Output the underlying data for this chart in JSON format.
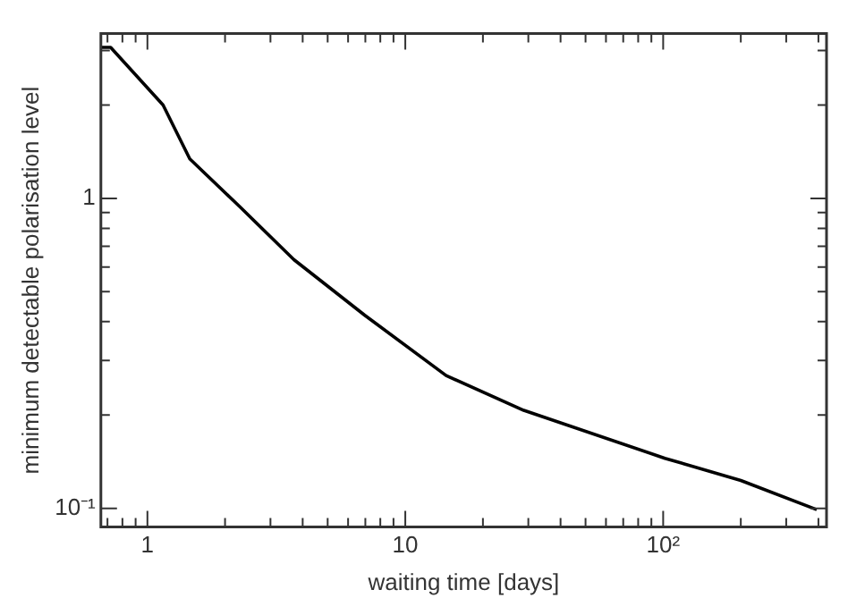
{
  "chart_data": {
    "type": "line",
    "xlabel": "waiting time [days]",
    "ylabel": "minimum detectable polarisation level",
    "log": "xy",
    "grid": false,
    "marker": "none",
    "line_style": "solid",
    "x": [
      0.66,
      0.72,
      1.15,
      1.46,
      2.31,
      3.7,
      6.95,
      14.4,
      28.8,
      101.6,
      200,
      394
    ],
    "series": [
      {
        "color": "#000000",
        "values": [
          3.07,
          3.07,
          2.0,
          1.34,
          0.93,
          0.634,
          0.42,
          0.268,
          0.207,
          0.145,
          0.123,
          0.099
        ]
      }
    ],
    "xlim": [
      0.66,
      430
    ],
    "ylim": [
      0.087,
      3.4
    ],
    "xticks": [
      {
        "value": 0.7,
        "label": null
      },
      {
        "value": 0.8,
        "label": null
      },
      {
        "value": 0.9,
        "label": null
      },
      1,
      {
        "value": 2,
        "label": null
      },
      {
        "value": 3,
        "label": null
      },
      {
        "value": 4,
        "label": null
      },
      {
        "value": 5,
        "label": null
      },
      {
        "value": 6,
        "label": null
      },
      {
        "value": 7,
        "label": null
      },
      {
        "value": 8,
        "label": null
      },
      {
        "value": 9,
        "label": null
      },
      10,
      {
        "value": 20,
        "label": null
      },
      {
        "value": 30,
        "label": null
      },
      {
        "value": 40,
        "label": null
      },
      {
        "value": 50,
        "label": null
      },
      {
        "value": 60,
        "label": null
      },
      {
        "value": 70,
        "label": null
      },
      {
        "value": 80,
        "label": null
      },
      {
        "value": 90,
        "label": null
      },
      {
        "value": 100,
        "label": "10²"
      },
      {
        "value": 200,
        "label": null
      },
      {
        "value": 300,
        "label": null
      },
      {
        "value": 400,
        "label": null
      }
    ],
    "yticks": [
      {
        "value": 0.1,
        "label": "10⁻¹"
      },
      {
        "value": 0.2,
        "label": null
      },
      {
        "value": 0.3,
        "label": null
      },
      {
        "value": 0.4,
        "label": null
      },
      {
        "value": 0.5,
        "label": null
      },
      {
        "value": 0.6,
        "label": null
      },
      {
        "value": 0.7,
        "label": null
      },
      {
        "value": 0.8,
        "label": null
      },
      {
        "value": 0.9,
        "label": null
      },
      1,
      {
        "value": 2,
        "label": null
      },
      {
        "value": 3,
        "label": null
      }
    ],
    "legend": false
  }
}
